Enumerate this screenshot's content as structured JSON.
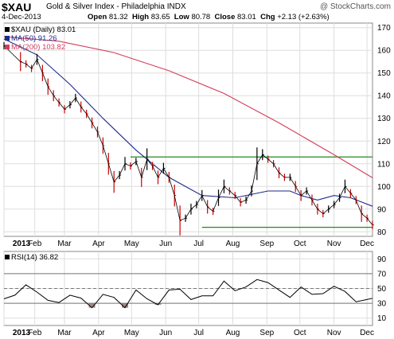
{
  "header": {
    "ticker": "$XAU",
    "index_name": "Gold & Silver Index - Philadelphia INDX",
    "watermark": "@ StockCharts.com",
    "date": "4-Dec-2013",
    "open_label": "Open",
    "open_value": "81.32",
    "high_label": "High",
    "high_value": "83.65",
    "low_label": "Low",
    "low_value": "80.78",
    "close_label": "Close",
    "close_value": "83.01",
    "chg_label": "Chg",
    "chg_value": "+2.13 (+2.63%)"
  },
  "legend": {
    "price": "$XAU (Daily) 83.01",
    "ma50": "MA(50) 91.26",
    "ma200": "MA(200) 103.82",
    "rsi": "RSI(14) 36.82"
  },
  "colors": {
    "price_up": "#000000",
    "price_down": "#cc0000",
    "ma50": "#1c2a8c",
    "ma200": "#d43c5c",
    "trendline": "#1f8a1f",
    "grid": "#dddddd",
    "rsi_line": "#000000",
    "rsi_fill": "#8c6a6a",
    "rsi_band": "#777777"
  },
  "chart_data": [
    {
      "type": "line",
      "title": "$XAU Gold & Silver Index - Philadelphia INDX",
      "ylim": [
        78,
        172
      ],
      "ytick_labels": [
        "170",
        "160",
        "150",
        "140",
        "130",
        "120",
        "110",
        "100",
        "90",
        "80"
      ],
      "yticks": [
        170,
        160,
        150,
        140,
        130,
        120,
        110,
        100,
        90,
        80
      ],
      "x_months": [
        "2013",
        "Feb",
        "Mar",
        "Apr",
        "May",
        "Jun",
        "Jul",
        "Aug",
        "Sep",
        "Oct",
        "Nov",
        "Dec"
      ],
      "series": [
        {
          "name": "$XAU (Daily)",
          "x": [
            0,
            15,
            20,
            25,
            30,
            35,
            40,
            45,
            50,
            55,
            60,
            65,
            70,
            75,
            80,
            85,
            90,
            95,
            100,
            105,
            110,
            115,
            120,
            125,
            130,
            135,
            140,
            145,
            150,
            155,
            160,
            165,
            170,
            175,
            180,
            185,
            190,
            195,
            200,
            205,
            210,
            215,
            220,
            225,
            230,
            235,
            240,
            245,
            250,
            255,
            260,
            265,
            270,
            275,
            280,
            285,
            290,
            295,
            300,
            305,
            310,
            315,
            320,
            325,
            330,
            335
          ],
          "values": [
            162,
            155,
            154,
            152,
            156,
            150,
            144,
            140,
            137,
            134,
            136,
            139,
            135,
            132,
            128,
            124,
            118,
            110,
            102,
            105,
            110,
            109,
            111,
            104,
            112,
            109,
            104,
            108,
            104,
            96,
            85,
            86,
            90,
            92,
            96,
            91,
            89,
            95,
            100,
            98,
            96,
            93,
            94,
            98,
            110,
            114,
            112,
            110,
            106,
            104,
            104,
            100,
            96,
            98,
            94,
            90,
            88,
            90,
            92,
            95,
            100,
            97,
            94,
            88,
            86,
            83.01
          ]
        },
        {
          "name": "MA(50)",
          "x": [
            0,
            30,
            60,
            90,
            120,
            150,
            180,
            210,
            240,
            260,
            270,
            285,
            300,
            315,
            335
          ],
          "values": [
            165,
            158,
            145,
            130,
            116,
            104,
            96,
            95,
            98,
            98,
            96,
            94,
            96,
            95,
            91.26
          ]
        },
        {
          "name": "MA(200)",
          "x": [
            0,
            50,
            100,
            150,
            200,
            250,
            300,
            335
          ],
          "values": [
            166,
            164,
            159,
            151,
            141,
            128,
            114,
            103.82
          ]
        }
      ],
      "annotations": [
        {
          "name": "resistance",
          "value": 113
        },
        {
          "name": "support",
          "value": 82
        }
      ]
    },
    {
      "type": "line",
      "title": "RSI(14) 36.82",
      "ylim": [
        0,
        100
      ],
      "yticks": [
        90,
        70,
        50,
        30,
        10
      ],
      "ytick_labels": [
        "90",
        "70",
        "50",
        "30",
        "10"
      ],
      "x_months": [
        "2013",
        "Feb",
        "Mar",
        "Apr",
        "May",
        "Jun",
        "Jul",
        "Aug",
        "Sep",
        "Oct",
        "Nov",
        "Dec"
      ],
      "series": [
        {
          "name": "RSI(14)",
          "x": [
            0,
            10,
            20,
            30,
            40,
            50,
            60,
            70,
            80,
            90,
            100,
            110,
            120,
            130,
            140,
            150,
            160,
            170,
            180,
            190,
            200,
            210,
            220,
            230,
            240,
            250,
            260,
            270,
            280,
            290,
            300,
            310,
            320,
            330,
            335
          ],
          "values": [
            36,
            41,
            55,
            45,
            34,
            31,
            41,
            37,
            24,
            42,
            38,
            24,
            48,
            36,
            28,
            48,
            49,
            35,
            40,
            40,
            60,
            47,
            52,
            62,
            58,
            48,
            38,
            52,
            42,
            43,
            53,
            46,
            32,
            35,
            36.82
          ]
        }
      ]
    }
  ]
}
